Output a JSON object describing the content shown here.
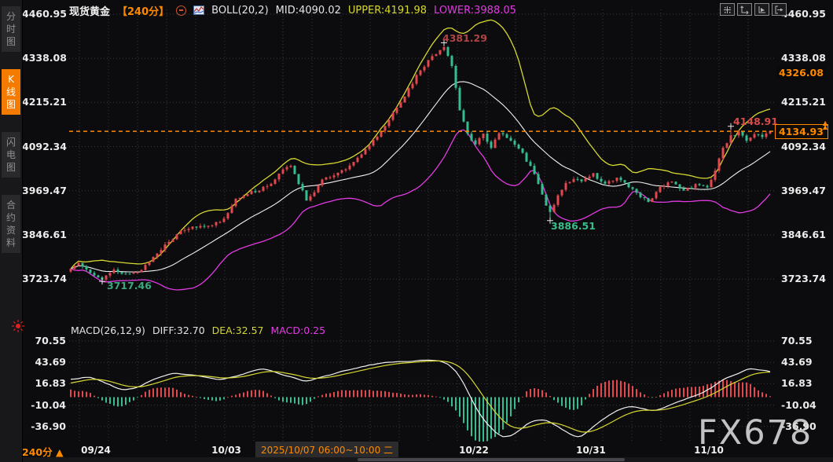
{
  "header": {
    "symbol": "现货黄金",
    "period": "【240分】",
    "indicator_label": "BOLL(20,2)",
    "mid": "MID:4090.02",
    "upper": "UPPER:4191.98",
    "lower": "LOWER:3988.05"
  },
  "toolbar": {
    "buttons": [
      "crosshair-tool",
      "axis-scale-left",
      "axis-scale-right",
      "pane-shift-right"
    ]
  },
  "sidebar": {
    "tabs": [
      {
        "label": "分时图",
        "active": false
      },
      {
        "label": "K线图",
        "active": true
      },
      {
        "label": "闪电图",
        "active": false
      },
      {
        "label": "合约资料",
        "active": false
      }
    ]
  },
  "macd_bar": {
    "label": "MACD(26,12,9)",
    "diff": "DIFF:32.70",
    "dea": "DEA:32.57",
    "macd": "MACD:0.25"
  },
  "badges": {
    "prev": "4326.08",
    "current": "4134.93"
  },
  "bottom": {
    "period_label": "240分",
    "period_arrow": "▲",
    "date_box": "2025/10/07 06:00~10:00 二"
  },
  "watermark": "FX678",
  "colors": {
    "up": "#e2484d",
    "down": "#36bd8f",
    "boll_upper": "#d6d831",
    "boll_mid": "#f0f0f0",
    "boll_lower": "#e23ae2",
    "diff_line": "#f0f0f0",
    "dea_line": "#d6d831",
    "accent": "#ff8a00",
    "grid": "#3a3a40",
    "annotation_red_dark": "#b04545",
    "annotation_red": "#d84b4b",
    "annotation_green": "#3bbd8b"
  },
  "chart_data": {
    "type": "candlestick",
    "symbol": "现货黄金",
    "interval_minutes": 240,
    "boll": {
      "period": 20,
      "mult": 2,
      "mid": 4090.02,
      "upper": 4191.98,
      "lower": 3988.05
    },
    "macd": {
      "fast": 26,
      "slow": 12,
      "signal": 9,
      "diff": 32.7,
      "dea": 32.57,
      "hist": 0.25
    },
    "current_price": 4134.93,
    "reference_price": 4326.08,
    "price_axis_values": [
      4460.95,
      4338.08,
      4215.21,
      4092.34,
      3969.47,
      3846.61,
      3723.74
    ],
    "macd_axis_values": [
      70.55,
      43.69,
      16.83,
      -10.04,
      -36.9
    ],
    "x_ticks": [
      {
        "label": "09/24",
        "x": 122
      },
      {
        "label": "10/03",
        "x": 288
      },
      {
        "label": "10/22",
        "x": 603
      },
      {
        "label": "10/31",
        "x": 752
      },
      {
        "label": "11/10",
        "x": 902
      }
    ],
    "num_candles": 179,
    "price_keypoints": [
      [
        0,
        3752
      ],
      [
        2,
        3772
      ],
      [
        5,
        3745
      ],
      [
        8,
        3722
      ],
      [
        11,
        3748
      ],
      [
        14,
        3738
      ],
      [
        17,
        3742
      ],
      [
        20,
        3772
      ],
      [
        23,
        3808
      ],
      [
        26,
        3838
      ],
      [
        28,
        3862
      ],
      [
        32,
        3868
      ],
      [
        36,
        3875
      ],
      [
        39,
        3892
      ],
      [
        42,
        3948
      ],
      [
        45,
        3962
      ],
      [
        48,
        3972
      ],
      [
        51,
        3992
      ],
      [
        54,
        4025
      ],
      [
        56,
        4042
      ],
      [
        58,
        3992
      ],
      [
        60,
        3945
      ],
      [
        62,
        3968
      ],
      [
        64,
        3998
      ],
      [
        66,
        4008
      ],
      [
        68,
        4018
      ],
      [
        70,
        4028
      ],
      [
        73,
        4058
      ],
      [
        76,
        4095
      ],
      [
        79,
        4135
      ],
      [
        82,
        4185
      ],
      [
        85,
        4235
      ],
      [
        88,
        4288
      ],
      [
        91,
        4330
      ],
      [
        93,
        4352
      ],
      [
        95,
        4372
      ],
      [
        97,
        4318
      ],
      [
        99,
        4196
      ],
      [
        101,
        4126
      ],
      [
        103,
        4096
      ],
      [
        105,
        4128
      ],
      [
        107,
        4092
      ],
      [
        109,
        4132
      ],
      [
        111,
        4116
      ],
      [
        113,
        4096
      ],
      [
        115,
        4072
      ],
      [
        117,
        4036
      ],
      [
        119,
        3992
      ],
      [
        121,
        3932
      ],
      [
        122,
        3908
      ],
      [
        124,
        3958
      ],
      [
        126,
        3992
      ],
      [
        128,
        4002
      ],
      [
        130,
        3992
      ],
      [
        133,
        4016
      ],
      [
        136,
        3988
      ],
      [
        139,
        4006
      ],
      [
        142,
        3982
      ],
      [
        145,
        3952
      ],
      [
        147,
        3938
      ],
      [
        150,
        3978
      ],
      [
        153,
        3996
      ],
      [
        156,
        3968
      ],
      [
        159,
        3986
      ],
      [
        162,
        3978
      ],
      [
        164,
        4028
      ],
      [
        166,
        4088
      ],
      [
        168,
        4122
      ],
      [
        170,
        4132
      ],
      [
        172,
        4108
      ],
      [
        174,
        4130
      ],
      [
        176,
        4116
      ],
      [
        178,
        4134.93
      ]
    ],
    "macd_diff_keypoints": [
      [
        0,
        22
      ],
      [
        4,
        26
      ],
      [
        8,
        20
      ],
      [
        13,
        9
      ],
      [
        17,
        12
      ],
      [
        22,
        24
      ],
      [
        26,
        30
      ],
      [
        30,
        29
      ],
      [
        34,
        26
      ],
      [
        38,
        22
      ],
      [
        41,
        24
      ],
      [
        44,
        30
      ],
      [
        48,
        36
      ],
      [
        51,
        33
      ],
      [
        54,
        28
      ],
      [
        57,
        24
      ],
      [
        60,
        19
      ],
      [
        63,
        24
      ],
      [
        66,
        28
      ],
      [
        70,
        33
      ],
      [
        74,
        38
      ],
      [
        78,
        42
      ],
      [
        82,
        45
      ],
      [
        86,
        44
      ],
      [
        89,
        46
      ],
      [
        92,
        47
      ],
      [
        95,
        44
      ],
      [
        97,
        38
      ],
      [
        99,
        26
      ],
      [
        101,
        8
      ],
      [
        103,
        -12
      ],
      [
        105,
        -28
      ],
      [
        107,
        -40
      ],
      [
        109,
        -48
      ],
      [
        111,
        -52
      ],
      [
        113,
        -46
      ],
      [
        115,
        -38
      ],
      [
        117,
        -31
      ],
      [
        120,
        -28
      ],
      [
        123,
        -33
      ],
      [
        126,
        -44
      ],
      [
        129,
        -52
      ],
      [
        131,
        -46
      ],
      [
        133,
        -38
      ],
      [
        136,
        -26
      ],
      [
        139,
        -17
      ],
      [
        142,
        -12
      ],
      [
        145,
        -13
      ],
      [
        148,
        -17
      ],
      [
        151,
        -14
      ],
      [
        154,
        -7
      ],
      [
        157,
        -2
      ],
      [
        160,
        4
      ],
      [
        163,
        12
      ],
      [
        166,
        22
      ],
      [
        169,
        28
      ],
      [
        171,
        33
      ],
      [
        173,
        37
      ],
      [
        175,
        34.5
      ],
      [
        178,
        32.7
      ]
    ],
    "markers": [
      {
        "i": 8,
        "price": 3717.46,
        "type": "low"
      },
      {
        "i": 95,
        "price": 4381.29,
        "type": "high"
      },
      {
        "i": 122,
        "price": 3886.51,
        "type": "low"
      },
      {
        "i": 168,
        "price": 4148.91,
        "type": "high"
      },
      {
        "i": 178,
        "price": 4134.93,
        "type": "close"
      }
    ],
    "annotations": [
      {
        "text": "4381.29",
        "x": 563,
        "y": 41,
        "color": "#b04545"
      },
      {
        "text": "3717.46",
        "x": 136,
        "y": 356,
        "color": "#3aa77f"
      },
      {
        "text": "3886.51",
        "x": 701,
        "y": 280,
        "color": "#3bbd8b"
      },
      {
        "text": "4148.91",
        "x": 933,
        "y": 147,
        "color": "#d84b4b"
      }
    ],
    "layout": {
      "x0": 90,
      "dx": 5,
      "plot_left": 88,
      "plot_right": 988,
      "price_y_top": 18,
      "price_y_step": 56.2,
      "macd_y_top": 434,
      "macd_y_step": 27.2
    }
  }
}
